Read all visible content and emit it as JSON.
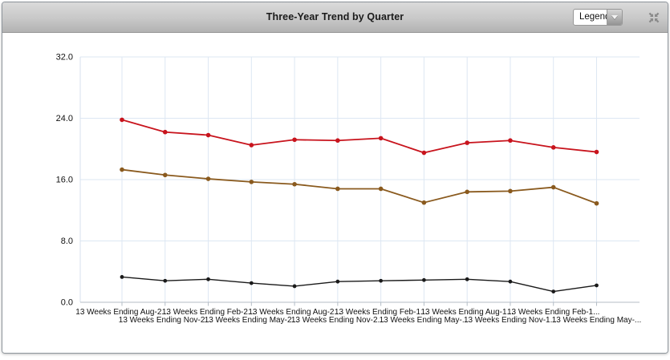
{
  "header": {
    "title": "Three-Year Trend by Quarter",
    "legend_dropdown": {
      "value": "Legend"
    }
  },
  "colors": {
    "grid": "#dde7f3",
    "axis_bottom": "#b4bdc6",
    "axis_left": "#d7e2ee",
    "tick_text": "#111111",
    "header_icon": "#8a8a8a"
  },
  "chart_data": {
    "type": "line",
    "title": "Three-Year Trend by Quarter",
    "xlabel": "",
    "ylabel": "",
    "ylim": [
      0,
      32
    ],
    "y_ticks": [
      0,
      8,
      16,
      24,
      32
    ],
    "y_tick_labels": [
      "0.0",
      "8.0",
      "16.0",
      "24.0",
      "32.0"
    ],
    "grid": true,
    "legend_position": "collapsed-dropdown",
    "x_labels": [
      "13 Weeks Ending Aug-2...",
      "13 Weeks Ending Nov-2...",
      "13 Weeks Ending Feb-2...",
      "13 Weeks Ending May-2...",
      "13 Weeks Ending Aug-2...",
      "13 Weeks Ending Nov-2...",
      "13 Weeks Ending Feb-1...",
      "13 Weeks Ending May-...",
      "13 Weeks Ending Aug-1...",
      "13 Weeks Ending Nov-1...",
      "13 Weeks Ending Feb-1...",
      "13 Weeks Ending May-..."
    ],
    "series": [
      {
        "id": "series-red",
        "color": "#c8141d",
        "marker": "circle",
        "values": [
          23.8,
          22.2,
          21.8,
          20.5,
          21.2,
          21.1,
          21.4,
          19.5,
          20.8,
          21.1,
          20.2,
          19.6
        ]
      },
      {
        "id": "series-brown",
        "color": "#8a5a1e",
        "marker": "circle",
        "values": [
          17.3,
          16.6,
          16.1,
          15.7,
          15.4,
          14.8,
          14.8,
          13.0,
          14.4,
          14.5,
          15.0,
          12.9
        ]
      },
      {
        "id": "series-black",
        "color": "#1a1a1a",
        "marker": "circle",
        "values": [
          3.3,
          2.8,
          3.0,
          2.5,
          2.1,
          2.7,
          2.8,
          2.9,
          3.0,
          2.7,
          1.4,
          2.2
        ]
      }
    ]
  }
}
